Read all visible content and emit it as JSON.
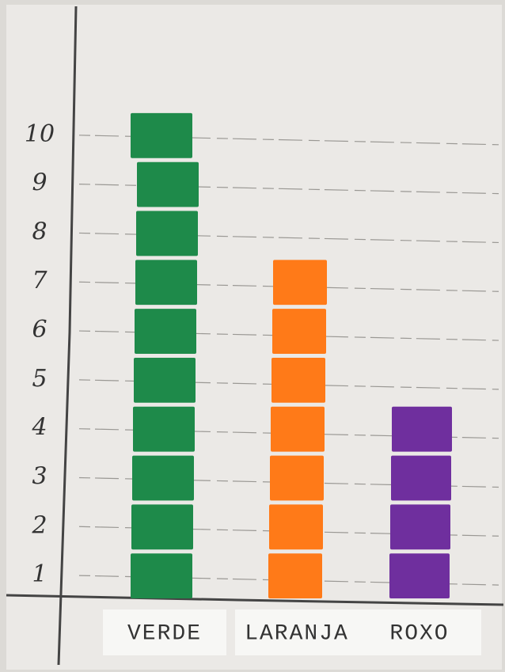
{
  "chart_data": {
    "type": "bar",
    "categories": [
      "VERDE",
      "LARANJA",
      "ROXO"
    ],
    "values": [
      10,
      7,
      4
    ],
    "colors": [
      "#1e8a4a",
      "#ff7a18",
      "#6f2f9e"
    ],
    "ylim": [
      0,
      10.5
    ],
    "yticks": [
      1,
      2,
      3,
      4,
      5,
      6,
      7,
      8,
      9,
      10
    ],
    "grid": true
  }
}
